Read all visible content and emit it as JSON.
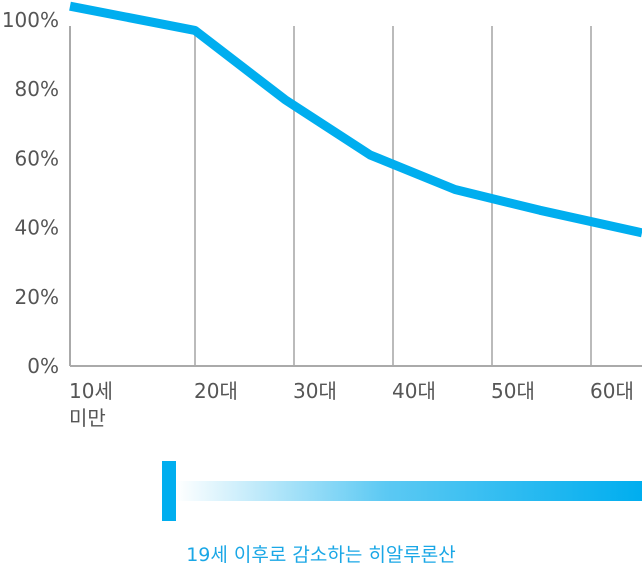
{
  "chart_data": {
    "type": "line",
    "categories": [
      "10세 미만",
      "20대",
      "30대",
      "40대",
      "50대",
      "60대"
    ],
    "x_tick_labels": [
      [
        "10세",
        "미만"
      ],
      [
        "20대"
      ],
      [
        "30대"
      ],
      [
        "40대"
      ],
      [
        "50대"
      ],
      [
        "60대"
      ]
    ],
    "y_tick_labels": [
      "100%",
      "80%",
      "60%",
      "40%",
      "20%",
      "0%"
    ],
    "ylim": [
      0,
      100
    ],
    "series": [
      {
        "values": [
          104,
          97,
          77,
          61,
          51,
          42
        ],
        "color": "#00aeef"
      }
    ],
    "grid": "vertical",
    "title": "",
    "xlabel": "",
    "ylabel": ""
  },
  "caption": "19세 이후로 감소하는 히알루론산",
  "colors": {
    "accent": "#00aeef",
    "caption": "#1aa7e6",
    "grid": "#bbbbbb",
    "axis": "#aaaaaa"
  }
}
